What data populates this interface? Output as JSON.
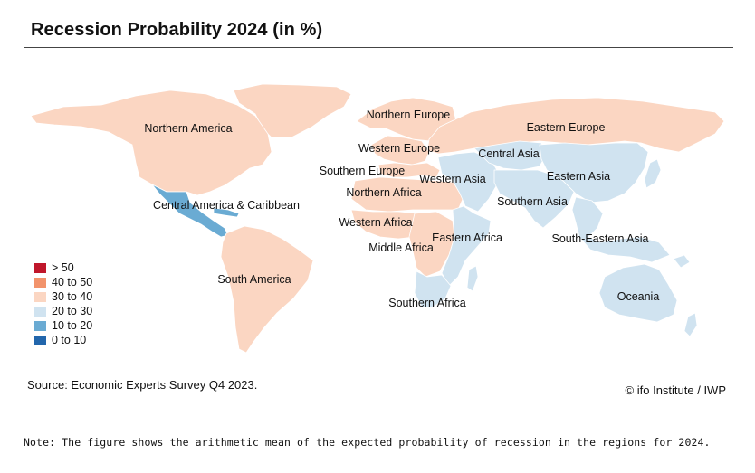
{
  "title": "Recession Probability 2024 (in %)",
  "colors": {
    "gt50": "#c0172b",
    "40to50": "#f2936b",
    "30to40": "#fbd6c2",
    "20to30": "#d0e3f0",
    "10to20": "#6aabd3",
    "0to10": "#2266ac",
    "border": "#ffffff"
  },
  "legend": {
    "items": [
      {
        "label": "> 50",
        "color": "#c0172b"
      },
      {
        "label": "40 to 50",
        "color": "#f2936b"
      },
      {
        "label": "30 to 40",
        "color": "#fbd6c2"
      },
      {
        "label": "20 to 30",
        "color": "#d0e3f0"
      },
      {
        "label": "10 to 20",
        "color": "#6aabd3"
      },
      {
        "label": "0 to 10",
        "color": "#2266ac"
      }
    ]
  },
  "regions": {
    "northern_america": {
      "label": "Northern America",
      "class": "30 to 40"
    },
    "central_america": {
      "label": "Central America & Caribbean",
      "class": "10 to 20"
    },
    "south_america": {
      "label": "South America",
      "class": "30 to 40"
    },
    "northern_europe": {
      "label": "Northern Europe",
      "class": "30 to 40"
    },
    "western_europe": {
      "label": "Western Europe",
      "class": "30 to 40"
    },
    "southern_europe": {
      "label": "Southern Europe",
      "class": "30 to 40"
    },
    "eastern_europe": {
      "label": "Eastern Europe",
      "class": "30 to 40"
    },
    "northern_africa": {
      "label": "Northern Africa",
      "class": "30 to 40"
    },
    "western_africa": {
      "label": "Western Africa",
      "class": "30 to 40"
    },
    "middle_africa": {
      "label": "Middle Africa",
      "class": "30 to 40"
    },
    "eastern_africa": {
      "label": "Eastern Africa",
      "class": "20 to 30"
    },
    "southern_africa": {
      "label": "Southern Africa",
      "class": "20 to 30"
    },
    "western_asia": {
      "label": "Western Asia",
      "class": "20 to 30"
    },
    "central_asia": {
      "label": "Central Asia",
      "class": "20 to 30"
    },
    "eastern_asia": {
      "label": "Eastern Asia",
      "class": "20 to 30"
    },
    "southern_asia": {
      "label": "Southern Asia",
      "class": "20 to 30"
    },
    "south_eastern_asia": {
      "label": "South-Eastern Asia",
      "class": "20 to 30"
    },
    "oceania": {
      "label": "Oceania",
      "class": "20 to 30"
    }
  },
  "source": "Source: Economic Experts Survey Q4 2023.",
  "credit": "© ifo Institute / IWP",
  "note": "Note: The figure shows the arithmetic mean of the expected probability of recession in the regions for 2024."
}
